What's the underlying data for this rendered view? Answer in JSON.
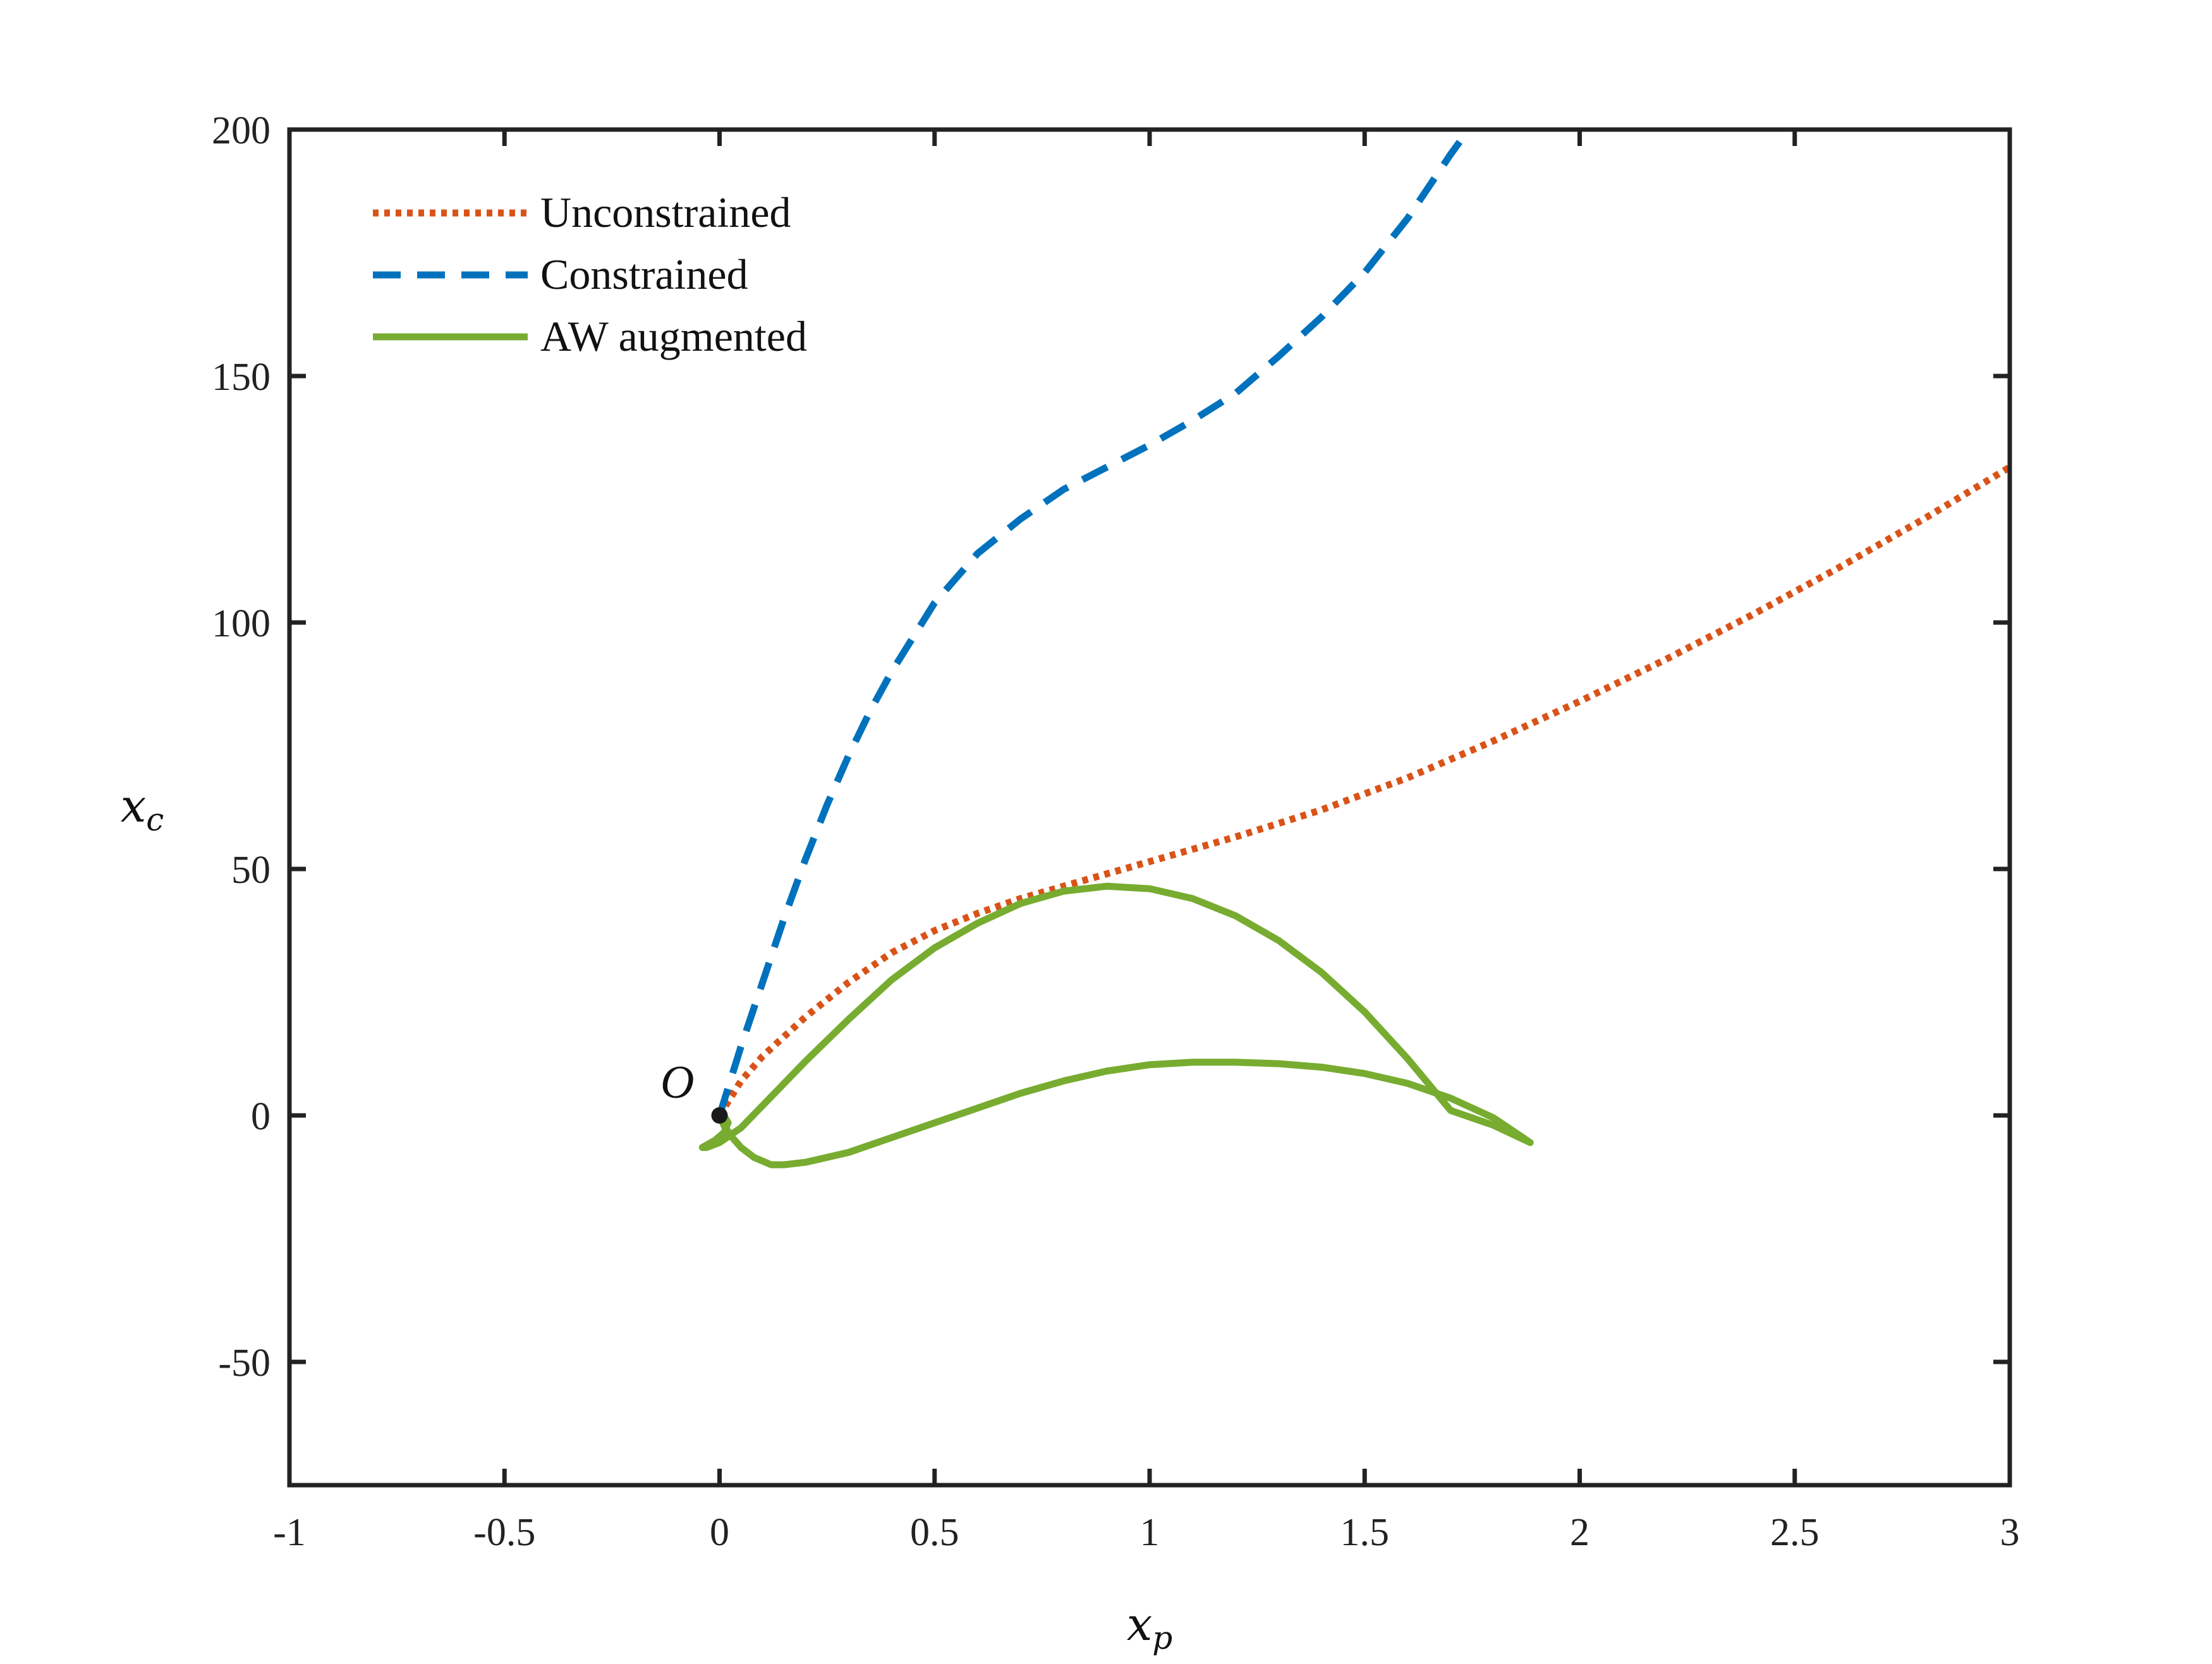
{
  "chart_data": {
    "type": "line",
    "xlabel": "x_p",
    "ylabel": "x_c",
    "xlabel_parts": {
      "base": "x",
      "sub": "p"
    },
    "ylabel_parts": {
      "base": "x",
      "sub": "c"
    },
    "xlim": [
      -1,
      3
    ],
    "ylim": [
      -75,
      200
    ],
    "xticks": [
      -1,
      -0.5,
      0,
      0.5,
      1,
      1.5,
      2,
      2.5,
      3
    ],
    "xtick_labels": [
      "-1",
      "-0.5",
      "0",
      "0.5",
      "1",
      "1.5",
      "2",
      "2.5",
      "3"
    ],
    "yticks": [
      -50,
      0,
      50,
      100,
      150,
      200
    ],
    "ytick_labels": [
      "-50",
      "0",
      "50",
      "100",
      "150",
      "200"
    ],
    "grid": false,
    "legend_position": "top-left",
    "series": [
      {
        "name": "Unconstrained",
        "style": "dotted",
        "color": "#D95319",
        "x": [
          0,
          0.05,
          0.1,
          0.2,
          0.3,
          0.4,
          0.5,
          0.6,
          0.7,
          0.8,
          0.9,
          1.0,
          1.2,
          1.4,
          1.6,
          1.8,
          2.0,
          2.2,
          2.4,
          2.6,
          2.8,
          3.0
        ],
        "y": [
          0,
          7,
          12,
          20,
          27,
          33,
          37.5,
          41,
          44,
          46.5,
          49,
          51.5,
          56.5,
          62,
          68.5,
          76,
          84,
          92.5,
          101.5,
          111,
          121,
          131.5
        ]
      },
      {
        "name": "Constrained",
        "style": "dashed",
        "color": "#0072BD",
        "x": [
          0,
          0.05,
          0.1,
          0.15,
          0.2,
          0.25,
          0.3,
          0.35,
          0.4,
          0.5,
          0.6,
          0.7,
          0.8,
          0.9,
          1.0,
          1.1,
          1.2,
          1.3,
          1.4,
          1.5,
          1.6,
          1.7,
          1.75
        ],
        "y": [
          0,
          14,
          27,
          40,
          52,
          63,
          73,
          82,
          90,
          104,
          114,
          121,
          127,
          131.5,
          136,
          141,
          146.5,
          154,
          162,
          171,
          182,
          195,
          201
        ]
      },
      {
        "name": "AW augmented",
        "style": "solid",
        "color": "#77AC30",
        "x": [
          0,
          0.01,
          0.02,
          0.01,
          -0.01,
          -0.03,
          -0.04,
          -0.03,
          0,
          0.05,
          0.1,
          0.15,
          0.2,
          0.3,
          0.4,
          0.5,
          0.6,
          0.7,
          0.8,
          0.9,
          1.0,
          1.1,
          1.2,
          1.3,
          1.4,
          1.5,
          1.6,
          1.7,
          1.8,
          1.885,
          1.8,
          1.7,
          1.6,
          1.5,
          1.4,
          1.3,
          1.2,
          1.1,
          1.0,
          0.9,
          0.8,
          0.7,
          0.6,
          0.5,
          0.4,
          0.3,
          0.2,
          0.15,
          0.12,
          0.08,
          0.05,
          0.03,
          0.01,
          0
        ],
        "y": [
          0,
          0,
          -1.5,
          -3.5,
          -5,
          -6,
          -6.5,
          -6.5,
          -5.5,
          -2.5,
          2,
          6.5,
          11,
          19.5,
          27.5,
          34,
          39,
          43,
          45.5,
          46.5,
          46,
          44,
          40.5,
          35.5,
          29,
          21,
          11.5,
          1,
          -2,
          -5.5,
          -0.5,
          3.5,
          6.5,
          8.5,
          9.8,
          10.5,
          10.8,
          10.8,
          10.3,
          9,
          7,
          4.5,
          1.5,
          -1.5,
          -4.5,
          -7.5,
          -9.5,
          -10,
          -10,
          -8.5,
          -6.5,
          -4.5,
          -2,
          0
        ]
      }
    ],
    "annotations": [
      {
        "text": "O",
        "x": 0,
        "y": 0
      }
    ]
  },
  "colors": {
    "axis": "#222222",
    "marker": "#1a1a1a"
  }
}
